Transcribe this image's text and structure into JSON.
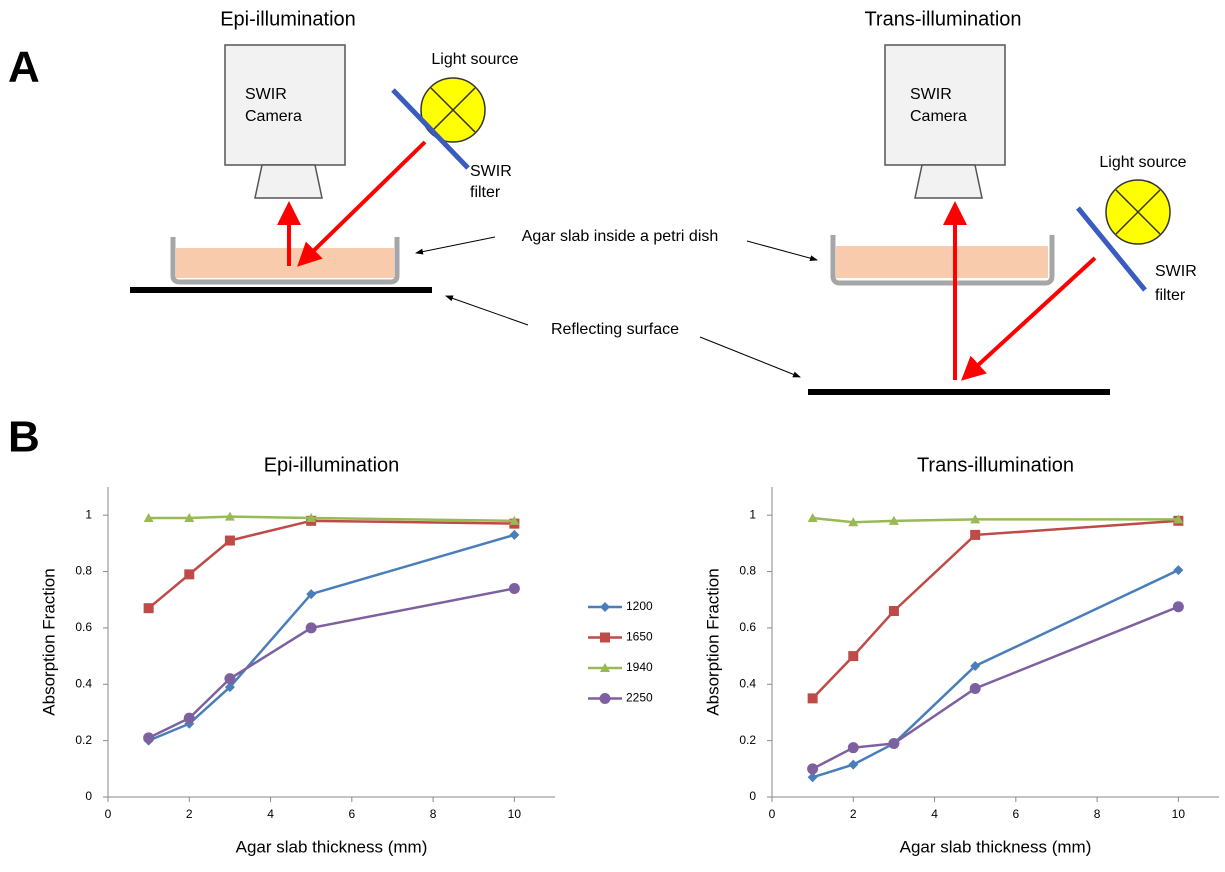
{
  "panel_labels": {
    "a": "A",
    "b": "B"
  },
  "diagram": {
    "epi": {
      "title": "Epi-illumination",
      "camera": [
        "SWIR",
        "Camera"
      ],
      "light": "Light source",
      "filter": [
        "SWIR",
        "filter"
      ]
    },
    "trans": {
      "title": "Trans-illumination",
      "camera": [
        "SWIR",
        "Camera"
      ],
      "light": "Light source",
      "filter": [
        "SWIR",
        "filter"
      ]
    },
    "agar_label": "Agar slab inside a petri dish",
    "surface_label": "Reflecting surface"
  },
  "chart_data": [
    {
      "type": "line",
      "title": "Epi-illumination",
      "x_label": "Agar slab thickness (mm)",
      "y_label": "Absorption Fraction",
      "x": [
        1,
        2,
        3,
        5,
        10
      ],
      "xlim": [
        0,
        11
      ],
      "ylim": [
        0,
        1.1
      ],
      "xticks": [
        0,
        2,
        4,
        6,
        8,
        10
      ],
      "yticks": [
        0,
        0.2,
        0.4,
        0.6,
        0.8,
        1
      ],
      "series": [
        {
          "name": "1200",
          "color": "#4a7ebb",
          "marker": "diamond",
          "values": [
            0.2,
            0.26,
            0.39,
            0.72,
            0.93
          ]
        },
        {
          "name": "1650",
          "color": "#be4b48",
          "marker": "square",
          "values": [
            0.67,
            0.79,
            0.91,
            0.98,
            0.97
          ]
        },
        {
          "name": "1940",
          "color": "#98b954",
          "marker": "triangle",
          "values": [
            0.99,
            0.99,
            0.995,
            0.99,
            0.98
          ]
        },
        {
          "name": "2250",
          "color": "#7d60a0",
          "marker": "circle",
          "values": [
            0.21,
            0.28,
            0.42,
            0.6,
            0.74
          ]
        }
      ]
    },
    {
      "type": "line",
      "title": "Trans-illumination",
      "x_label": "Agar slab thickness (mm)",
      "y_label": "Absorption Fraction",
      "x": [
        1,
        2,
        3,
        5,
        10
      ],
      "xlim": [
        0,
        11
      ],
      "ylim": [
        0,
        1.1
      ],
      "xticks": [
        0,
        2,
        4,
        6,
        8,
        10
      ],
      "yticks": [
        0,
        0.2,
        0.4,
        0.6,
        0.8,
        1
      ],
      "series": [
        {
          "color": "#4a7ebb",
          "marker": "diamond",
          "values": [
            0.07,
            0.115,
            0.19,
            0.465,
            0.805
          ]
        },
        {
          "color": "#be4b48",
          "marker": "square",
          "values": [
            0.35,
            0.5,
            0.66,
            0.93,
            0.98
          ]
        },
        {
          "color": "#98b954",
          "marker": "triangle",
          "values": [
            0.99,
            0.975,
            0.98,
            0.985,
            0.985
          ]
        },
        {
          "color": "#7d60a0",
          "marker": "circle",
          "values": [
            0.1,
            0.175,
            0.19,
            0.385,
            0.675
          ]
        }
      ]
    }
  ]
}
